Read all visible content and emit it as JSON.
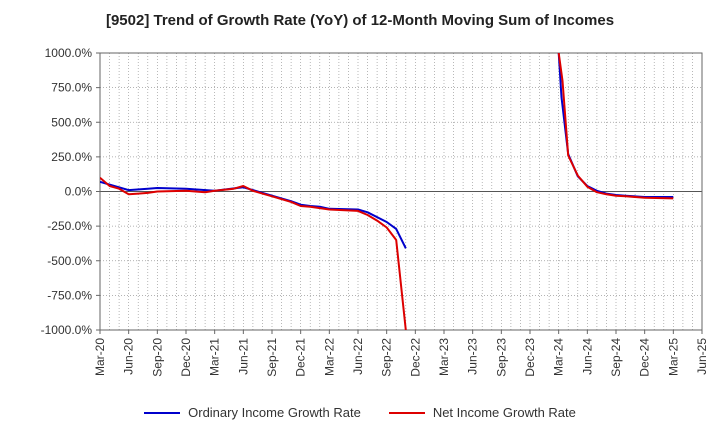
{
  "chart_data": {
    "type": "line",
    "title": "[9502]  Trend of Growth Rate (YoY) of 12-Month Moving Sum of Incomes",
    "xlabel": "",
    "ylabel": "",
    "ylim": [
      -1000,
      1000
    ],
    "yticks": [
      1000,
      750,
      500,
      250,
      0,
      -250,
      -500,
      -750,
      -1000
    ],
    "ytick_labels": [
      "1000.0%",
      "750.0%",
      "500.0%",
      "250.0%",
      "0.0%",
      "-250.0%",
      "-500.0%",
      "-750.0%",
      "-1000.0%"
    ],
    "x_tick_labels": [
      "Mar-20",
      "Jun-20",
      "Sep-20",
      "Dec-20",
      "Mar-21",
      "Jun-21",
      "Sep-21",
      "Dec-21",
      "Mar-22",
      "Jun-22",
      "Sep-22",
      "Dec-22",
      "Mar-23",
      "Jun-23",
      "Sep-23",
      "Dec-23",
      "Mar-24",
      "Jun-24",
      "Sep-24",
      "Dec-24",
      "Mar-25",
      "Jun-25"
    ],
    "x_tick_months": [
      0,
      3,
      6,
      9,
      12,
      15,
      18,
      21,
      24,
      27,
      30,
      33,
      36,
      39,
      42,
      45,
      48,
      51,
      54,
      57,
      60,
      63
    ],
    "grid": true,
    "legend_position": "bottom",
    "series": [
      {
        "name": "Ordinary Income Growth Rate",
        "color": "#0000cc",
        "points": [
          [
            0,
            70
          ],
          [
            2,
            30
          ],
          [
            3,
            10
          ],
          [
            5,
            20
          ],
          [
            6,
            25
          ],
          [
            9,
            20
          ],
          [
            12,
            5
          ],
          [
            15,
            30
          ],
          [
            16,
            10
          ],
          [
            18,
            -30
          ],
          [
            20,
            -70
          ],
          [
            21,
            -95
          ],
          [
            22,
            -105
          ],
          [
            23,
            -110
          ],
          [
            24,
            -125
          ],
          [
            27,
            -130
          ],
          [
            28,
            -150
          ],
          [
            29,
            -185
          ],
          [
            30,
            -220
          ],
          [
            31,
            -270
          ],
          [
            32,
            -410
          ],
          [
            48,
            1000
          ],
          [
            48.3,
            680
          ],
          [
            49,
            270
          ],
          [
            50,
            110
          ],
          [
            51,
            40
          ],
          [
            52,
            5
          ],
          [
            53,
            -15
          ],
          [
            54,
            -25
          ],
          [
            55,
            -30
          ],
          [
            57,
            -40
          ],
          [
            60,
            -40
          ]
        ]
      },
      {
        "name": "Net Income Growth Rate",
        "color": "#dd0000",
        "points": [
          [
            0,
            100
          ],
          [
            1,
            40
          ],
          [
            2,
            20
          ],
          [
            3,
            -20
          ],
          [
            4,
            -15
          ],
          [
            5,
            -10
          ],
          [
            6,
            0
          ],
          [
            9,
            5
          ],
          [
            11,
            -5
          ],
          [
            12,
            5
          ],
          [
            14,
            20
          ],
          [
            15,
            40
          ],
          [
            16,
            5
          ],
          [
            17,
            -15
          ],
          [
            18,
            -35
          ],
          [
            20,
            -75
          ],
          [
            21,
            -105
          ],
          [
            22,
            -110
          ],
          [
            23,
            -120
          ],
          [
            24,
            -130
          ],
          [
            27,
            -140
          ],
          [
            28,
            -170
          ],
          [
            29,
            -210
          ],
          [
            30,
            -260
          ],
          [
            31,
            -350
          ],
          [
            32,
            -1000
          ],
          [
            48,
            1000
          ],
          [
            48.4,
            800
          ],
          [
            49,
            260
          ],
          [
            50,
            115
          ],
          [
            51,
            35
          ],
          [
            52,
            -5
          ],
          [
            53,
            -20
          ],
          [
            54,
            -30
          ],
          [
            55,
            -35
          ],
          [
            57,
            -45
          ],
          [
            60,
            -50
          ]
        ]
      }
    ]
  }
}
